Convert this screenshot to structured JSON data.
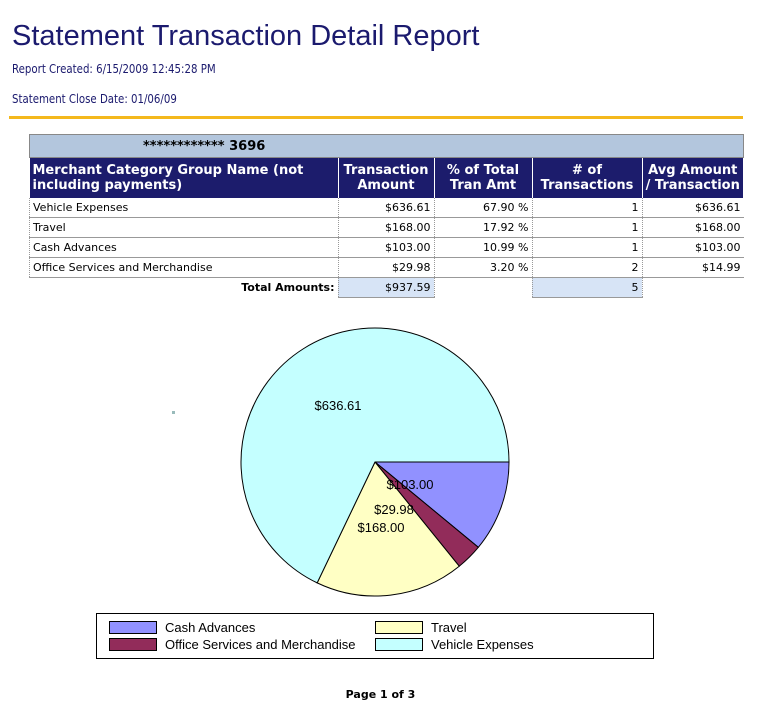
{
  "title": "Statement Transaction Detail Report",
  "report_created": "Report Created: 6/15/2009 12:45:28 PM",
  "close_date": "Statement Close Date: 01/06/09",
  "account": "************ 3696",
  "headers": [
    "Merchant Category Group Name (not including payments)",
    "Transaction Amount",
    "% of Total Tran Amt",
    "# of Transactions",
    "Avg Amount / Transaction"
  ],
  "rows": [
    [
      "Vehicle Expenses",
      "$636.61",
      "67.90 %",
      "1",
      "$636.61"
    ],
    [
      "Travel",
      "$168.00",
      "17.92 %",
      "1",
      "$168.00"
    ],
    [
      "Cash Advances",
      "$103.00",
      "10.99 %",
      "1",
      "$103.00"
    ],
    [
      "Office Services and Merchandise",
      "$29.98",
      "3.20 %",
      "2",
      "$14.99"
    ]
  ],
  "total": {
    "label": "Total Amounts:",
    "amount": "$937.59",
    "count": "5"
  },
  "chart_data": {
    "type": "pie",
    "start": "3 o'clock, clockwise",
    "slices": [
      {
        "label": "Cash Advances",
        "value": 103.0,
        "text": "$103.00",
        "color": "#9191ff"
      },
      {
        "label": "Office Services and Merchandise",
        "value": 29.98,
        "text": "$29.98",
        "color": "#922c5a"
      },
      {
        "label": "Travel",
        "value": 168.0,
        "text": "$168.00",
        "color": "#ffffc4"
      },
      {
        "label": "Vehicle Expenses",
        "value": 636.61,
        "text": "$636.61",
        "color": "#c4ffff"
      }
    ],
    "legend_placement": "bottom"
  },
  "footer": "Page 1 of 3"
}
